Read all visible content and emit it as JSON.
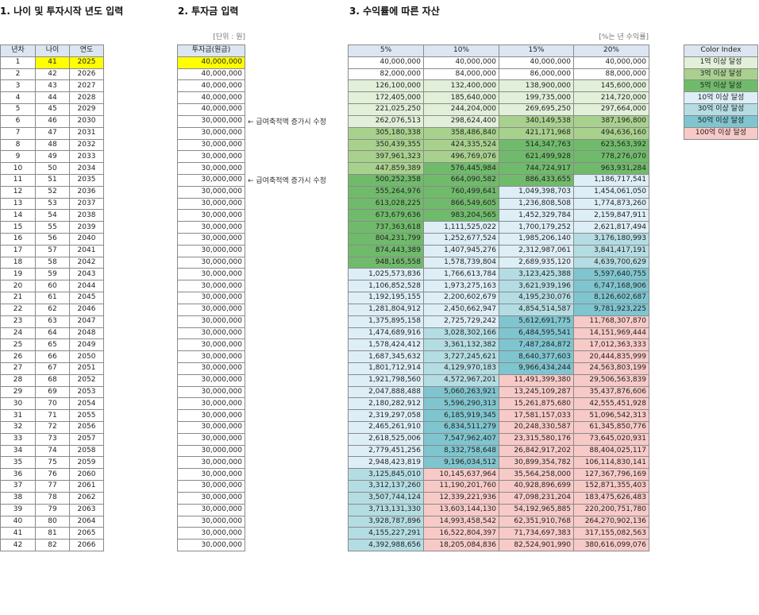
{
  "sections": {
    "s1": "1. 나이 및 투자시작 년도 입력",
    "s2": "2. 투자금 입력",
    "s3": "3. 수익률에 따른 자산"
  },
  "unit_labels": {
    "invest": "[단위 : 원]",
    "rate": "[%는 년 수익률]"
  },
  "left_table": {
    "headers": [
      "년차",
      "나이",
      "연도"
    ],
    "start_age": 41,
    "start_year": 2025,
    "rows": [
      [
        "1",
        "41",
        "2025"
      ],
      [
        "2",
        "42",
        "2026"
      ],
      [
        "3",
        "43",
        "2027"
      ],
      [
        "4",
        "44",
        "2028"
      ],
      [
        "5",
        "45",
        "2029"
      ],
      [
        "6",
        "46",
        "2030"
      ],
      [
        "7",
        "47",
        "2031"
      ],
      [
        "8",
        "48",
        "2032"
      ],
      [
        "9",
        "49",
        "2033"
      ],
      [
        "10",
        "50",
        "2034"
      ],
      [
        "11",
        "51",
        "2035"
      ],
      [
        "12",
        "52",
        "2036"
      ],
      [
        "13",
        "53",
        "2037"
      ],
      [
        "14",
        "54",
        "2038"
      ],
      [
        "15",
        "55",
        "2039"
      ],
      [
        "16",
        "56",
        "2040"
      ],
      [
        "17",
        "57",
        "2041"
      ],
      [
        "18",
        "58",
        "2042"
      ],
      [
        "19",
        "59",
        "2043"
      ],
      [
        "20",
        "60",
        "2044"
      ],
      [
        "21",
        "61",
        "2045"
      ],
      [
        "22",
        "62",
        "2046"
      ],
      [
        "23",
        "63",
        "2047"
      ],
      [
        "24",
        "64",
        "2048"
      ],
      [
        "25",
        "65",
        "2049"
      ],
      [
        "26",
        "66",
        "2050"
      ],
      [
        "27",
        "67",
        "2051"
      ],
      [
        "28",
        "68",
        "2052"
      ],
      [
        "29",
        "69",
        "2053"
      ],
      [
        "30",
        "70",
        "2054"
      ],
      [
        "31",
        "71",
        "2055"
      ],
      [
        "32",
        "72",
        "2056"
      ],
      [
        "33",
        "73",
        "2057"
      ],
      [
        "34",
        "74",
        "2058"
      ],
      [
        "35",
        "75",
        "2059"
      ],
      [
        "36",
        "76",
        "2060"
      ],
      [
        "37",
        "77",
        "2061"
      ],
      [
        "38",
        "78",
        "2062"
      ],
      [
        "39",
        "79",
        "2063"
      ],
      [
        "40",
        "80",
        "2064"
      ],
      [
        "41",
        "81",
        "2065"
      ],
      [
        "42",
        "82",
        "2066"
      ]
    ]
  },
  "invest_table": {
    "header": "투자금(원금)",
    "values": [
      "40,000,000",
      "40,000,000",
      "40,000,000",
      "40,000,000",
      "40,000,000",
      "30,000,000",
      "30,000,000",
      "30,000,000",
      "30,000,000",
      "30,000,000",
      "30,000,000",
      "30,000,000",
      "30,000,000",
      "30,000,000",
      "30,000,000",
      "30,000,000",
      "30,000,000",
      "30,000,000",
      "30,000,000",
      "30,000,000",
      "30,000,000",
      "30,000,000",
      "30,000,000",
      "30,000,000",
      "30,000,000",
      "30,000,000",
      "30,000,000",
      "30,000,000",
      "30,000,000",
      "30,000,000",
      "30,000,000",
      "30,000,000",
      "30,000,000",
      "30,000,000",
      "30,000,000",
      "30,000,000",
      "30,000,000",
      "30,000,000",
      "30,000,000",
      "30,000,000",
      "30,000,000",
      "30,000,000"
    ],
    "notes": [
      {
        "row": 6,
        "text": "← 급여축적액 증가시 수정"
      },
      {
        "row": 11,
        "text": "← 급여축적액 증가시 수정"
      }
    ]
  },
  "returns_table": {
    "headers": [
      "5%",
      "10%",
      "15%",
      "20%"
    ],
    "rows": [
      [
        "40,000,000",
        "40,000,000",
        "40,000,000",
        "40,000,000"
      ],
      [
        "82,000,000",
        "84,000,000",
        "86,000,000",
        "88,000,000"
      ],
      [
        "126,100,000",
        "132,400,000",
        "138,900,000",
        "145,600,000"
      ],
      [
        "172,405,000",
        "185,640,000",
        "199,735,000",
        "214,720,000"
      ],
      [
        "221,025,250",
        "244,204,000",
        "269,695,250",
        "297,664,000"
      ],
      [
        "262,076,513",
        "298,624,400",
        "340,149,538",
        "387,196,800"
      ],
      [
        "305,180,338",
        "358,486,840",
        "421,171,968",
        "494,636,160"
      ],
      [
        "350,439,355",
        "424,335,524",
        "514,347,763",
        "623,563,392"
      ],
      [
        "397,961,323",
        "496,769,076",
        "621,499,928",
        "778,276,070"
      ],
      [
        "447,859,389",
        "576,445,984",
        "744,724,917",
        "963,931,284"
      ],
      [
        "500,252,358",
        "664,090,582",
        "886,433,655",
        "1,186,717,541"
      ],
      [
        "555,264,976",
        "760,499,641",
        "1,049,398,703",
        "1,454,061,050"
      ],
      [
        "613,028,225",
        "866,549,605",
        "1,236,808,508",
        "1,774,873,260"
      ],
      [
        "673,679,636",
        "983,204,565",
        "1,452,329,784",
        "2,159,847,911"
      ],
      [
        "737,363,618",
        "1,111,525,022",
        "1,700,179,252",
        "2,621,817,494"
      ],
      [
        "804,231,799",
        "1,252,677,524",
        "1,985,206,140",
        "3,176,180,993"
      ],
      [
        "874,443,389",
        "1,407,945,276",
        "2,312,987,061",
        "3,841,417,191"
      ],
      [
        "948,165,558",
        "1,578,739,804",
        "2,689,935,120",
        "4,639,700,629"
      ],
      [
        "1,025,573,836",
        "1,766,613,784",
        "3,123,425,388",
        "5,597,640,755"
      ],
      [
        "1,106,852,528",
        "1,973,275,163",
        "3,621,939,196",
        "6,747,168,906"
      ],
      [
        "1,192,195,155",
        "2,200,602,679",
        "4,195,230,076",
        "8,126,602,687"
      ],
      [
        "1,281,804,912",
        "2,450,662,947",
        "4,854,514,587",
        "9,781,923,225"
      ],
      [
        "1,375,895,158",
        "2,725,729,242",
        "5,612,691,775",
        "11,768,307,870"
      ],
      [
        "1,474,689,916",
        "3,028,302,166",
        "6,484,595,541",
        "14,151,969,444"
      ],
      [
        "1,578,424,412",
        "3,361,132,382",
        "7,487,284,872",
        "17,012,363,333"
      ],
      [
        "1,687,345,632",
        "3,727,245,621",
        "8,640,377,603",
        "20,444,835,999"
      ],
      [
        "1,801,712,914",
        "4,129,970,183",
        "9,966,434,244",
        "24,563,803,199"
      ],
      [
        "1,921,798,560",
        "4,572,967,201",
        "11,491,399,380",
        "29,506,563,839"
      ],
      [
        "2,047,888,488",
        "5,060,263,921",
        "13,245,109,287",
        "35,437,876,606"
      ],
      [
        "2,180,282,912",
        "5,596,290,313",
        "15,261,875,680",
        "42,555,451,928"
      ],
      [
        "2,319,297,058",
        "6,185,919,345",
        "17,581,157,033",
        "51,096,542,313"
      ],
      [
        "2,465,261,910",
        "6,834,511,279",
        "20,248,330,587",
        "61,345,850,776"
      ],
      [
        "2,618,525,006",
        "7,547,962,407",
        "23,315,580,176",
        "73,645,020,931"
      ],
      [
        "2,779,451,256",
        "8,332,758,648",
        "26,842,917,202",
        "88,404,025,117"
      ],
      [
        "2,948,423,819",
        "9,196,034,512",
        "30,899,354,782",
        "106,114,830,141"
      ],
      [
        "3,125,845,010",
        "10,145,637,964",
        "35,564,258,000",
        "127,367,796,169"
      ],
      [
        "3,312,137,260",
        "11,190,201,760",
        "40,928,896,699",
        "152,871,355,403"
      ],
      [
        "3,507,744,124",
        "12,339,221,936",
        "47,098,231,204",
        "183,475,626,483"
      ],
      [
        "3,713,131,330",
        "13,603,144,130",
        "54,192,965,885",
        "220,200,751,780"
      ],
      [
        "3,928,787,896",
        "14,993,458,542",
        "62,351,910,768",
        "264,270,902,136"
      ],
      [
        "4,155,227,291",
        "16,522,804,397",
        "71,734,697,383",
        "317,155,082,563"
      ],
      [
        "4,392,988,656",
        "18,205,084,836",
        "82,524,901,990",
        "380,616,099,076"
      ]
    ]
  },
  "color_index": {
    "header": "Color Index",
    "items": [
      {
        "label": "1억 이상 달성",
        "color": "#e2f0d9"
      },
      {
        "label": "3억 이상 달성",
        "color": "#a9d18e"
      },
      {
        "label": "5억 이상 달성",
        "color": "#70bb6b"
      },
      {
        "label": "10억 이상 달성",
        "color": "#ddeef6"
      },
      {
        "label": "30억 이상 달성",
        "color": "#b4dde3"
      },
      {
        "label": "50억 이상 달성",
        "color": "#7fc5cf"
      },
      {
        "label": "100억 이상 달성",
        "color": "#f7cac7"
      }
    ]
  },
  "colors": {
    "highlight": "#ffff00",
    "header_bg": "#dce6f2"
  }
}
